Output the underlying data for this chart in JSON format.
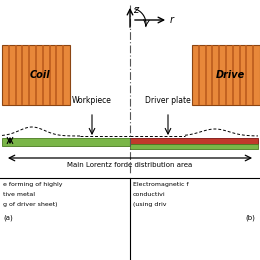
{
  "bg_color": "#ffffff",
  "coil_color": "#e8883a",
  "coil_stripe_color": "#c06020",
  "workpiece_color": "#7ab648",
  "driver_color": "#c0392b",
  "z_label": "z",
  "r_label": "r",
  "title_text": "Main Lorentz forde distribution area",
  "label_a": "(a)",
  "label_b": "(b)",
  "workpiece_label": "Workpiece",
  "driver_plate_label": "Driver plate",
  "coil_label": "Coil",
  "driver_coil_label": "Drive",
  "text_a1": "e forming of highly",
  "text_a2": "tive metal",
  "text_a3": "g of driver sheet)",
  "text_b1": "Electromagnetic f",
  "text_b2": "conductivi",
  "text_b3": "(using driv"
}
